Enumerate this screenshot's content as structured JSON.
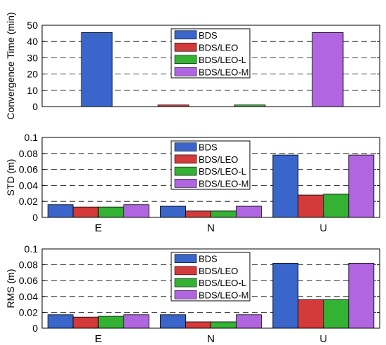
{
  "colors": {
    "BDS": "#3a66cc",
    "BDS/LEO": "#d43a3a",
    "BDS/LEO-L": "#33b233",
    "BDS/LEO-M": "#b066e0"
  },
  "chart_data": [
    {
      "type": "bar",
      "ylabel": "Convergence Time (min)",
      "xlabel": "",
      "ylim": [
        0,
        50
      ],
      "yticks": [
        "0",
        "10",
        "20",
        "30",
        "40",
        "50"
      ],
      "grid": "dashed horizontal",
      "legend_position": "top-center",
      "categories": [
        ""
      ],
      "series": [
        {
          "name": "BDS",
          "values": [
            45.5
          ]
        },
        {
          "name": "BDS/LEO",
          "values": [
            1.0
          ]
        },
        {
          "name": "BDS/LEO-L",
          "values": [
            1.0
          ]
        },
        {
          "name": "BDS/LEO-M",
          "values": [
            45.5
          ]
        }
      ]
    },
    {
      "type": "bar",
      "ylabel": "STD (m)",
      "xlabel": "",
      "ylim": [
        0,
        0.1
      ],
      "yticks": [
        "0",
        "0.02",
        "0.04",
        "0.06",
        "0.08",
        "0.1"
      ],
      "grid": "dashed horizontal",
      "legend_position": "top-center",
      "categories": [
        "E",
        "N",
        "U"
      ],
      "series": [
        {
          "name": "BDS",
          "values": [
            0.016,
            0.014,
            0.078
          ]
        },
        {
          "name": "BDS/LEO",
          "values": [
            0.013,
            0.008,
            0.028
          ]
        },
        {
          "name": "BDS/LEO-L",
          "values": [
            0.013,
            0.008,
            0.029
          ]
        },
        {
          "name": "BDS/LEO-M",
          "values": [
            0.016,
            0.014,
            0.078
          ]
        }
      ]
    },
    {
      "type": "bar",
      "ylabel": "RMS (m)",
      "xlabel": "",
      "ylim": [
        0,
        0.1
      ],
      "yticks": [
        "0",
        "0.02",
        "0.04",
        "0.06",
        "0.08",
        "0.1"
      ],
      "grid": "dashed horizontal",
      "legend_position": "top-center",
      "categories": [
        "E",
        "N",
        "U"
      ],
      "series": [
        {
          "name": "BDS",
          "values": [
            0.017,
            0.017,
            0.082
          ]
        },
        {
          "name": "BDS/LEO",
          "values": [
            0.014,
            0.008,
            0.036
          ]
        },
        {
          "name": "BDS/LEO-L",
          "values": [
            0.015,
            0.008,
            0.036
          ]
        },
        {
          "name": "BDS/LEO-M",
          "values": [
            0.017,
            0.017,
            0.082
          ]
        }
      ]
    }
  ]
}
